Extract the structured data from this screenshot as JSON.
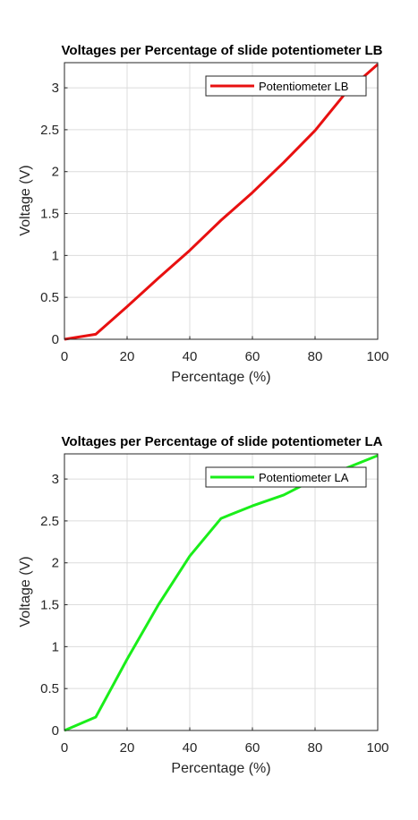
{
  "chart_data": [
    {
      "type": "line",
      "title": "Voltages per Percentage of slide potentiometer LB",
      "xlabel": "Percentage (%)",
      "ylabel": "Voltage (V)",
      "xlim": [
        0,
        100
      ],
      "ylim": [
        0,
        3.3
      ],
      "xticks": [
        "0",
        "20",
        "40",
        "60",
        "80",
        "100"
      ],
      "yticks": [
        "0",
        "0.5",
        "1",
        "1.5",
        "2",
        "2.5",
        "3"
      ],
      "grid": true,
      "legend_position": "top-right",
      "series": [
        {
          "name": "Potentiometer LB",
          "color": "#e81010",
          "x": [
            0,
            10,
            20,
            30,
            40,
            50,
            60,
            70,
            80,
            90,
            100
          ],
          "y": [
            0,
            0.06,
            0.39,
            0.73,
            1.06,
            1.42,
            1.75,
            2.11,
            2.49,
            2.95,
            3.28
          ]
        }
      ]
    },
    {
      "type": "line",
      "title": "Voltages per Percentage of slide potentiometer LA",
      "xlabel": "Percentage (%)",
      "ylabel": "Voltage (V)",
      "xlim": [
        0,
        100
      ],
      "ylim": [
        0,
        3.3
      ],
      "xticks": [
        "0",
        "20",
        "40",
        "60",
        "80",
        "100"
      ],
      "yticks": [
        "0",
        "0.5",
        "1",
        "1.5",
        "2",
        "2.5",
        "3"
      ],
      "grid": true,
      "legend_position": "top-right",
      "series": [
        {
          "name": "Potentiometer LA",
          "color": "#1aee1a",
          "x": [
            0,
            10,
            20,
            30,
            40,
            50,
            60,
            70,
            80,
            90,
            100
          ],
          "y": [
            0,
            0.16,
            0.85,
            1.5,
            2.08,
            2.53,
            2.68,
            2.81,
            3.0,
            3.13,
            3.28
          ]
        }
      ]
    }
  ]
}
